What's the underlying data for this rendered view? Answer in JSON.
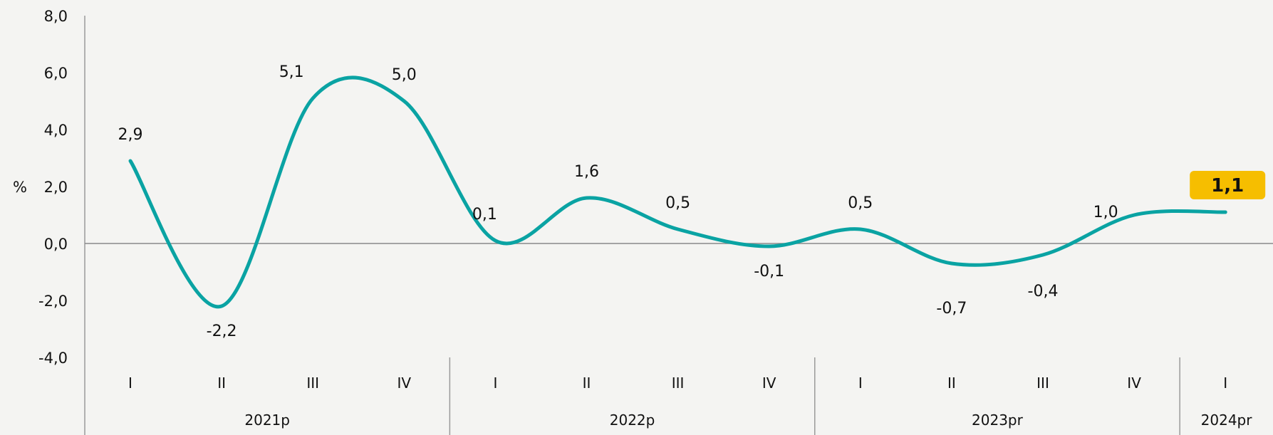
{
  "chart_data": {
    "type": "line",
    "ylabel": "%",
    "ylim": [
      -4,
      8
    ],
    "yticks": [
      "8,0",
      "6,0",
      "4,0",
      "2,0",
      "0,0",
      "-2,0",
      "-4,0"
    ],
    "ytick_values": [
      8,
      6,
      4,
      2,
      0,
      -2,
      -4
    ],
    "categories": [
      "I",
      "II",
      "III",
      "IV",
      "I",
      "II",
      "III",
      "IV",
      "I",
      "II",
      "III",
      "IV",
      "I"
    ],
    "groups": [
      {
        "label": "2021p",
        "count": 4
      },
      {
        "label": "2022p",
        "count": 4
      },
      {
        "label": "2023pr",
        "count": 4
      },
      {
        "label": "2024pr",
        "count": 1
      }
    ],
    "series": [
      {
        "values": [
          2.9,
          -2.2,
          5.1,
          5.0,
          0.1,
          1.6,
          0.5,
          -0.1,
          0.5,
          -0.7,
          -0.4,
          1.0,
          1.1
        ],
        "data_labels": [
          "2,9",
          "-2,2",
          "5,1",
          "5,0",
          "0,1",
          "1,6",
          "0,5",
          "-0,1",
          "0,5",
          "-0,7",
          "-0,4",
          "1,0",
          "1,1"
        ],
        "color": "#0aa3a3"
      }
    ],
    "highlight": {
      "index": 12,
      "label": "1,1",
      "color": "#f6be00"
    },
    "grid": false,
    "legend": "none"
  }
}
